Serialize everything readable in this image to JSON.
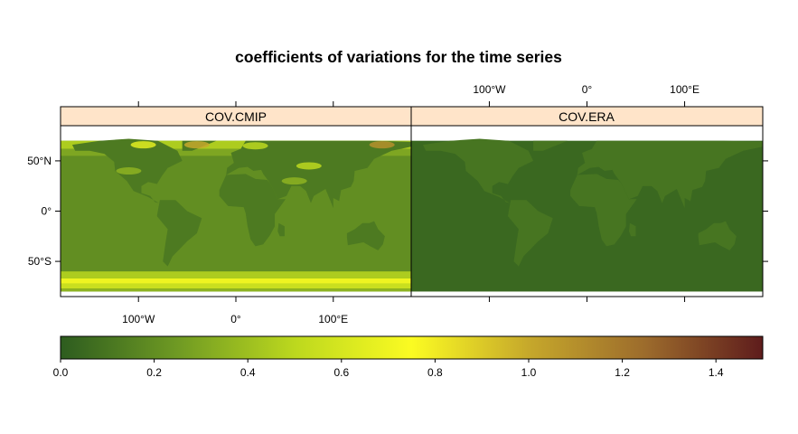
{
  "chart_data": {
    "type": "heatmap",
    "title": "coefficients of variations for the time series",
    "panels": [
      {
        "name": "COV.CMIP",
        "strip_label": "COV.CMIP"
      },
      {
        "name": "COV.ERA",
        "strip_label": "COV.ERA"
      }
    ],
    "x_ticks": [
      {
        "value": -100,
        "label": "100°W"
      },
      {
        "value": 0,
        "label": "0°"
      },
      {
        "value": 100,
        "label": "100°E"
      }
    ],
    "y_ticks": [
      {
        "value": 50,
        "label": "50°N"
      },
      {
        "value": 0,
        "label": "0°"
      },
      {
        "value": -50,
        "label": "50°S"
      }
    ],
    "xlim": [
      -180,
      180
    ],
    "ylim": [
      -85,
      85
    ],
    "data_lat_range": [
      -80,
      70
    ],
    "colorkey": {
      "range": [
        0,
        1.5
      ],
      "ticks": [
        {
          "value": 0.0,
          "label": "0.0"
        },
        {
          "value": 0.2,
          "label": "0.2"
        },
        {
          "value": 0.4,
          "label": "0.4"
        },
        {
          "value": 0.6,
          "label": "0.6"
        },
        {
          "value": 0.8,
          "label": "0.8"
        },
        {
          "value": 1.0,
          "label": "1.0"
        },
        {
          "value": 1.2,
          "label": "1.2"
        },
        {
          "value": 1.4,
          "label": "1.4"
        }
      ],
      "color_stops": [
        {
          "value": 0.0,
          "color": "#2d5c1f"
        },
        {
          "value": 0.25,
          "color": "#6f9a23"
        },
        {
          "value": 0.5,
          "color": "#bcd81e"
        },
        {
          "value": 0.75,
          "color": "#fbfb22"
        },
        {
          "value": 1.0,
          "color": "#c6a82b"
        },
        {
          "value": 1.25,
          "color": "#9c6b2c"
        },
        {
          "value": 1.5,
          "color": "#5e1c1c"
        }
      ]
    },
    "strip_color": "#ffe4c9"
  }
}
